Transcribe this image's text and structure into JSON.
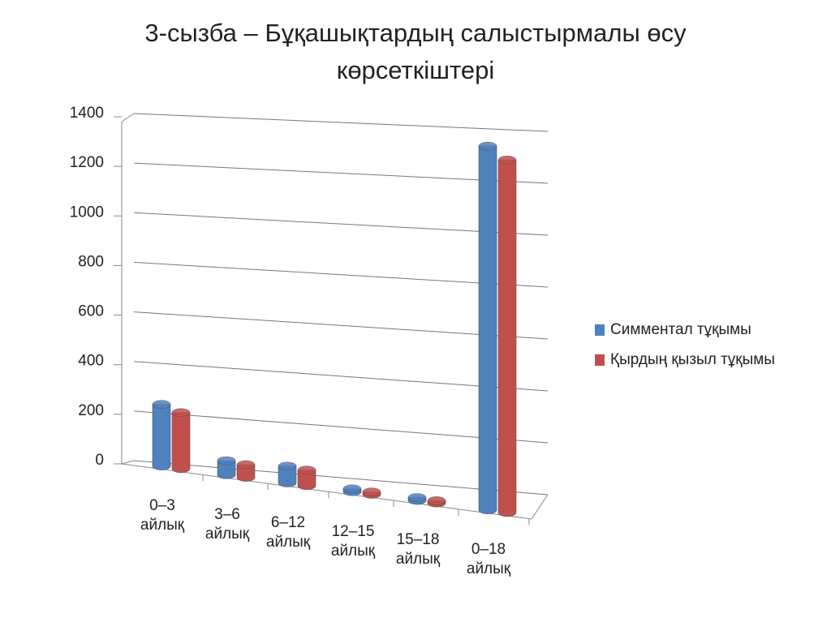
{
  "chart_data": {
    "type": "bar3d",
    "title": "3-сызба – Бұқашықтардың салыстырмалы өсу көрсеткіштері",
    "categories": [
      "0–3 айлық",
      "3–6 айлық",
      "6–12 айлық",
      "12–15 айлық",
      "15–18 айлық",
      "0–18 айлық"
    ],
    "series": [
      {
        "name": "Симментал тұқымы",
        "color": "#4f81bd",
        "values": [
          220,
          50,
          60,
          10,
          10,
          1300
        ]
      },
      {
        "name": "Қырдың қызыл тұқымы",
        "color": "#c0504d",
        "values": [
          200,
          45,
          55,
          8,
          8,
          1260
        ]
      }
    ],
    "ylim": [
      0,
      1400
    ],
    "yticks": [
      0,
      200,
      400,
      600,
      800,
      1000,
      1200,
      1400
    ],
    "grid": true,
    "legend": "right"
  }
}
